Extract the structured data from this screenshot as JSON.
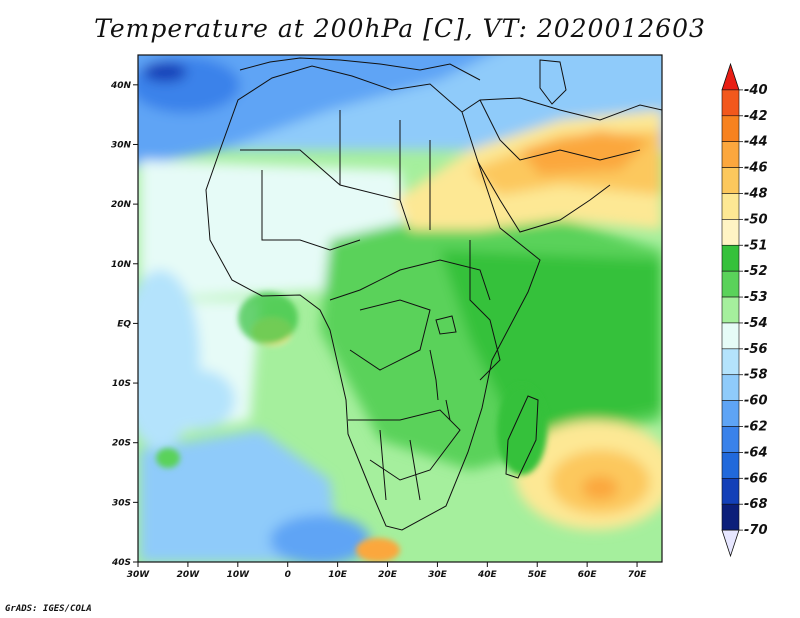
{
  "title": "Temperature at 200hPa [C], VT: 2020012603",
  "footer": "GrADS: IGES/COLA",
  "map": {
    "lon_min": -30,
    "lon_max": 75,
    "lat_min": -40,
    "lat_max": 45,
    "lat_ticks": [
      {
        "value": 40,
        "label": "40N"
      },
      {
        "value": 30,
        "label": "30N"
      },
      {
        "value": 20,
        "label": "20N"
      },
      {
        "value": 10,
        "label": "10N"
      },
      {
        "value": 0,
        "label": "EQ"
      },
      {
        "value": -10,
        "label": "10S"
      },
      {
        "value": -20,
        "label": "20S"
      },
      {
        "value": -30,
        "label": "30S"
      },
      {
        "value": -40,
        "label": "40S"
      }
    ],
    "lon_ticks": [
      {
        "value": -30,
        "label": "30W"
      },
      {
        "value": -20,
        "label": "20W"
      },
      {
        "value": -10,
        "label": "10W"
      },
      {
        "value": 0,
        "label": "0"
      },
      {
        "value": 10,
        "label": "10E"
      },
      {
        "value": 20,
        "label": "20E"
      },
      {
        "value": 30,
        "label": "30E"
      },
      {
        "value": 40,
        "label": "40E"
      },
      {
        "value": 50,
        "label": "50E"
      },
      {
        "value": 60,
        "label": "60E"
      },
      {
        "value": 70,
        "label": "70E"
      }
    ]
  },
  "colorbar": {
    "labels": [
      "-40",
      "-42",
      "-44",
      "-46",
      "-48",
      "-50",
      "-51",
      "-52",
      "-53",
      "-54",
      "-56",
      "-58",
      "-60",
      "-62",
      "-64",
      "-66",
      "-68",
      "-70"
    ],
    "colors": [
      "#e81e14",
      "#f2581c",
      "#f7821f",
      "#fba73e",
      "#fcc85d",
      "#fde894",
      "#fff4c4",
      "#35c13b",
      "#5ad25a",
      "#a5ef9d",
      "#e6fbf7",
      "#b4e3fc",
      "#8fcbfa",
      "#5ea4f5",
      "#3a82ea",
      "#2169db",
      "#1340b8",
      "#0c1f7a",
      "#e6e6ff"
    ]
  }
}
